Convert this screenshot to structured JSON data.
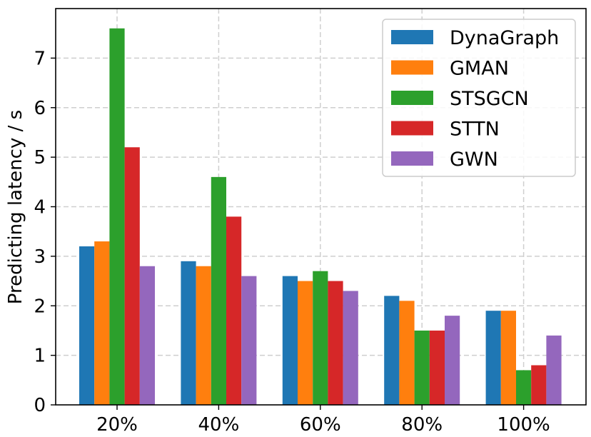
{
  "chart_data": {
    "type": "bar",
    "title": "",
    "xlabel": "",
    "ylabel": "Predicting latency / s",
    "categories": [
      "20%",
      "40%",
      "60%",
      "80%",
      "100%"
    ],
    "ylim": [
      0,
      8
    ],
    "yticks": [
      0,
      1,
      2,
      3,
      4,
      5,
      6,
      7
    ],
    "grid": true,
    "legend_position": "top-right",
    "series": [
      {
        "name": "DynaGraph",
        "color": "#1f77b4",
        "values": [
          3.2,
          2.9,
          2.6,
          2.2,
          1.9
        ]
      },
      {
        "name": "GMAN",
        "color": "#ff7f0e",
        "values": [
          3.3,
          2.8,
          2.5,
          2.1,
          1.9
        ]
      },
      {
        "name": "STSGCN",
        "color": "#2ca02c",
        "values": [
          7.6,
          4.6,
          2.7,
          1.5,
          0.7
        ]
      },
      {
        "name": "STTN",
        "color": "#d62728",
        "values": [
          5.2,
          3.8,
          2.5,
          1.5,
          0.8
        ]
      },
      {
        "name": "GWN",
        "color": "#9467bd",
        "values": [
          2.8,
          2.6,
          2.3,
          1.8,
          1.4
        ]
      }
    ]
  }
}
